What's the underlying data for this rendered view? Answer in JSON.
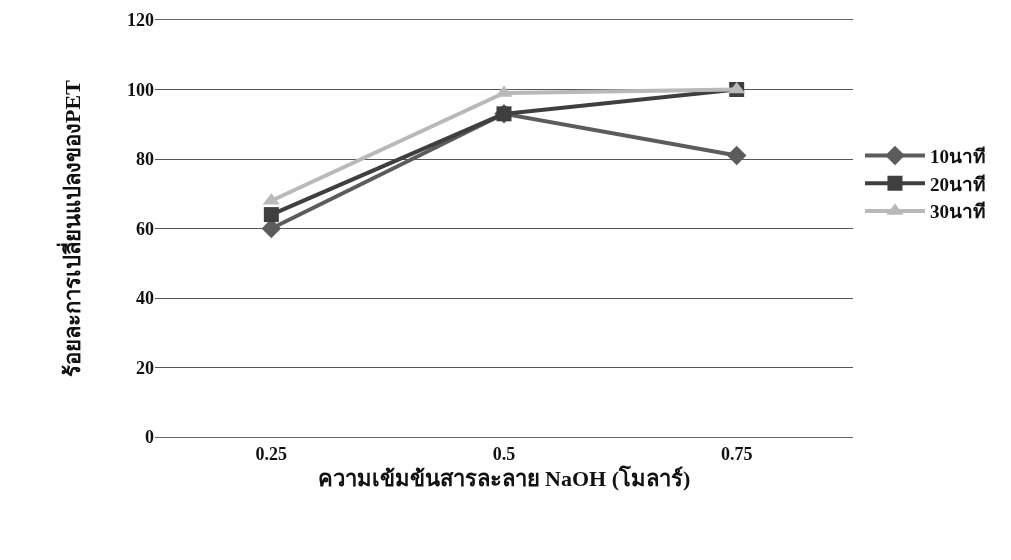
{
  "chart_data": {
    "type": "line",
    "xlabel": "ความเข้มข้นสารละลาย NaOH (โมลาร์)",
    "ylabel": "ร้อยละการเปลี่ยนแปลงของPET",
    "categories": [
      "0.25",
      "0.5",
      "0.75"
    ],
    "series": [
      {
        "name": "10นาที",
        "color": "#5c5c5c",
        "marker": "diamond",
        "values": [
          60,
          93,
          81
        ]
      },
      {
        "name": "20นาที",
        "color": "#3f3f3f",
        "marker": "square",
        "values": [
          64,
          93,
          100
        ]
      },
      {
        "name": "30นาที",
        "color": "#b9b9b9",
        "marker": "triangle",
        "values": [
          68,
          99,
          100
        ]
      }
    ],
    "ylim": [
      0,
      120
    ],
    "yticks": [
      0,
      20,
      40,
      60,
      80,
      100,
      120
    ],
    "grid": "y",
    "legend": "right",
    "line_style": "solid"
  }
}
